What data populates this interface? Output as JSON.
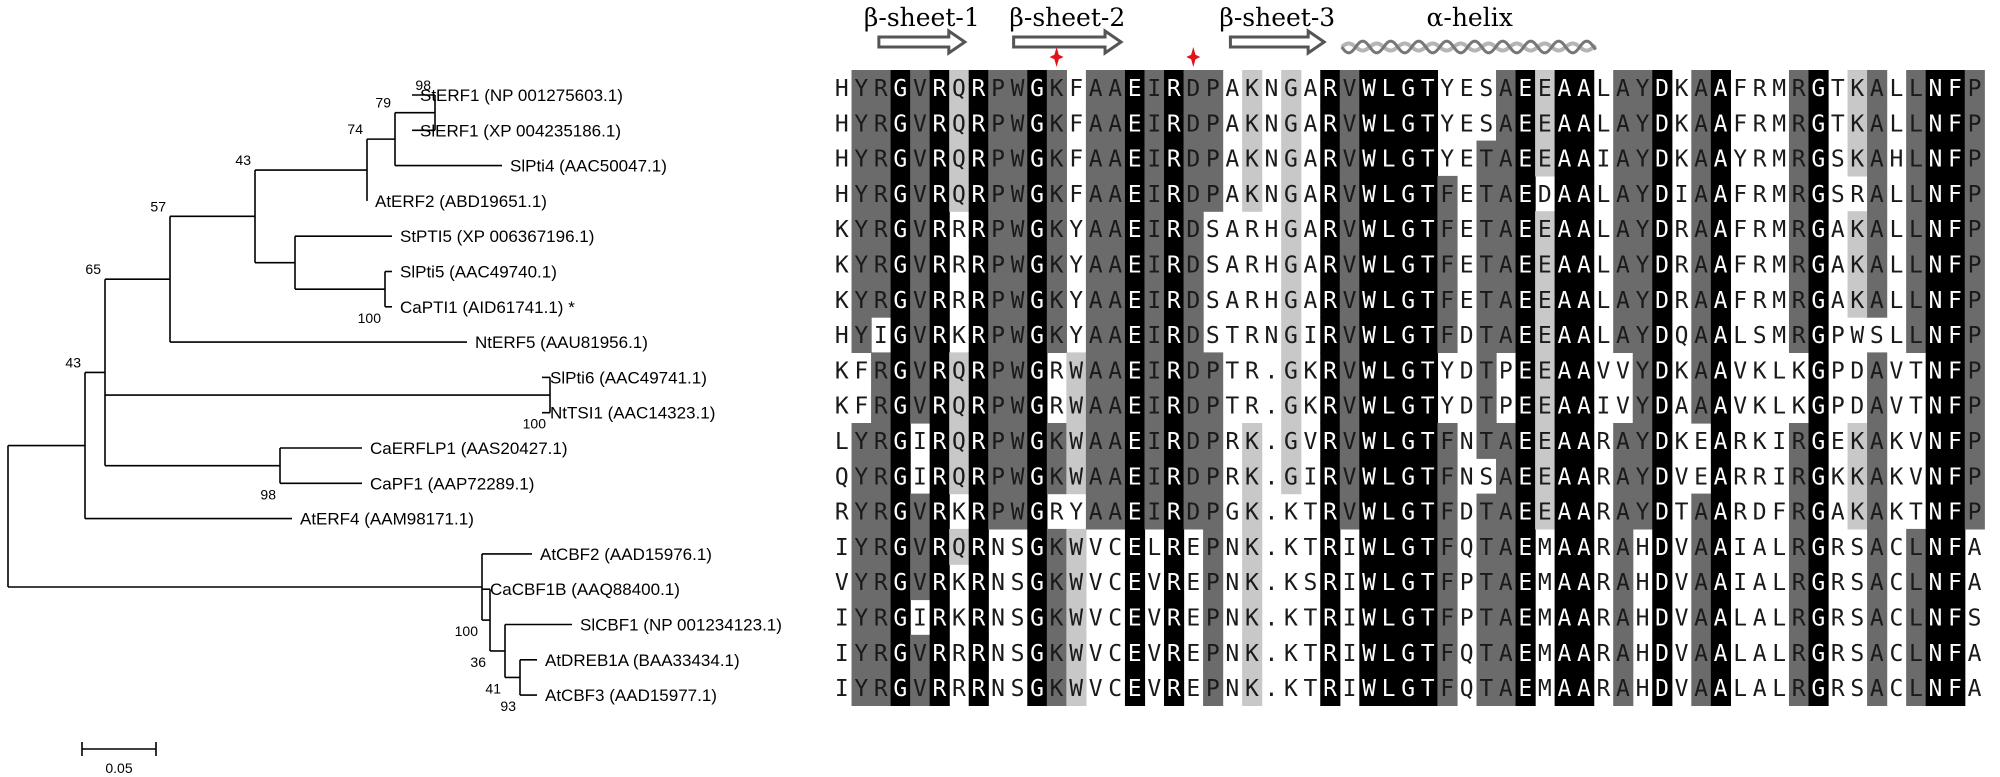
{
  "tree": {
    "leaves": [
      "StERF1 (NP 001275603.1)",
      "SlERF1 (XP 004235186.1)",
      "SlPti4 (AAC50047.1)",
      "AtERF2 (ABD19651.1)",
      "StPTI5 (XP 006367196.1)",
      "SlPti5 (AAC49740.1)",
      "CaPTI1 (AID61741.1) *",
      "NtERF5 (AAU81956.1)",
      "SlPti6 (AAC49741.1)",
      "NtTSI1 (AAC14323.1)",
      "CaERFLP1 (AAS20427.1)",
      "CaPF1 (AAP72289.1)",
      "AtERF4 (AAM98171.1)",
      "AtCBF2 (AAD15976.1)",
      "CaCBF1B (AAQ88400.1)",
      "SlCBF1 (NP 001234123.1)",
      "AtDREB1A (BAA33434.1)",
      "AtCBF3 (AAD15977.1)"
    ],
    "bootstrap": [
      "98",
      "79",
      "74",
      "43",
      "100",
      "57",
      "100",
      "65",
      "98",
      "43",
      "93",
      "41",
      "36",
      "100"
    ],
    "scale_bar_label": "0.05"
  },
  "alignment": {
    "secondary_structure": [
      {
        "label": "β-sheet-1",
        "type": "arrow"
      },
      {
        "label": "β-sheet-2",
        "type": "arrow"
      },
      {
        "label": "β-sheet-3",
        "type": "arrow"
      },
      {
        "label": "α-helix",
        "type": "helix"
      }
    ],
    "sequences": [
      "HYRGVRQRPWGKFAAEIRDPAKNGARVWLGTYESAEEAALAYDKAAFRMRGTKALLNFP",
      "HYRGVRQRPWGKFAAEIRDPAKNGARVWLGTYESAEEAALAYDKAAFRMRGTKALLNFP",
      "HYRGVRQRPWGKFAAEIRDPAKNGARVWLGTYETAEEAAIAYDKAAYRMRGSKAHLNFP",
      "HYRGVRQRPWGKFAAEIRDPAKNGARVWLGTFETAEDAALAYDIAAFRMRGSRALLNFP",
      "KYRGVRRRPWGKYAAEIRDSARHGARVWLGTFETAEEAALAYDRAAFRMRGAKALLNFP",
      "KYRGVRRRPWGKYAAEIRDSARHGARVWLGTFETAEEAALAYDRAAFRMRGAKALLNFP",
      "KYRGVRRRPWGKYAAEIRDSARHGARVWLGTFETAEEAALAYDRAAFRMRGAKALLNFP",
      "HYIGVRKRPWGKYAAEIRDSTRNGIRVWLGTFDTAEEAALAYDQAALSMRGPWSLLNFP",
      "KFRGVRQRPWGRWAAEIRDPTR.GKRVWLGTYDTPEEAAVVYDKAAVKLKGPDAVTNFP",
      "KFRGVRQRPWGRWAAEIRDPTR.GKRVWLGTYDTPEEAAIVYDAAAVKLKGPDAVTNFP",
      "LYRGIRQRPWGKWAAEIRDPRK.GVRVWLGTFNTAEEAARAYDKEARKIRGEKAKVNFP",
      "QYRGIRQRPWGKWAAEIRDPRK.GIRVWLGTFNSAEEAARAYDVEARRIRGKKAKVNFP",
      "RYRGVRKRPWGRYAAEIRDPGK.KTRVWLGTFDTAEEAARAYDTAARDFRGAKAKTNFP",
      "IYRGVRQRNSGKWVCELREPNK.KTRIWLGTFQTAEMAARAHDVAAIALRGRSACLNFA",
      "VYRGVRKRNSGKWVCEVREPNK.KSRIWLGTFPTAEMAARAHDVAAIALRGRSACLNFA",
      "IYRGIRKRNSGKWVCEVREPNK.KTRIWLGTFPTAEMAARAHDVAALALRGRSACLNFS",
      "IYRGVRRRNSGKWVCEVREPNK.KTRIWLGTFQTAEMAARAHDVAALALRGRSACLNFA",
      "IYRGVRRRNSGKWVCEVREPNK.KTRIWLGTFQTAEMAARAHDVAALALRGRSACLNFA"
    ],
    "shading_levels": [
      "white",
      "light-gray",
      "dark-gray",
      "black"
    ],
    "shading_colors": {
      "white": "#ffffff",
      "light-gray": "#c8c8c8",
      "dark-gray": "#6b6b6b",
      "black": "#000000"
    },
    "marker_color": "#e0131b",
    "marker_icon": "red-cross-star-icon"
  }
}
